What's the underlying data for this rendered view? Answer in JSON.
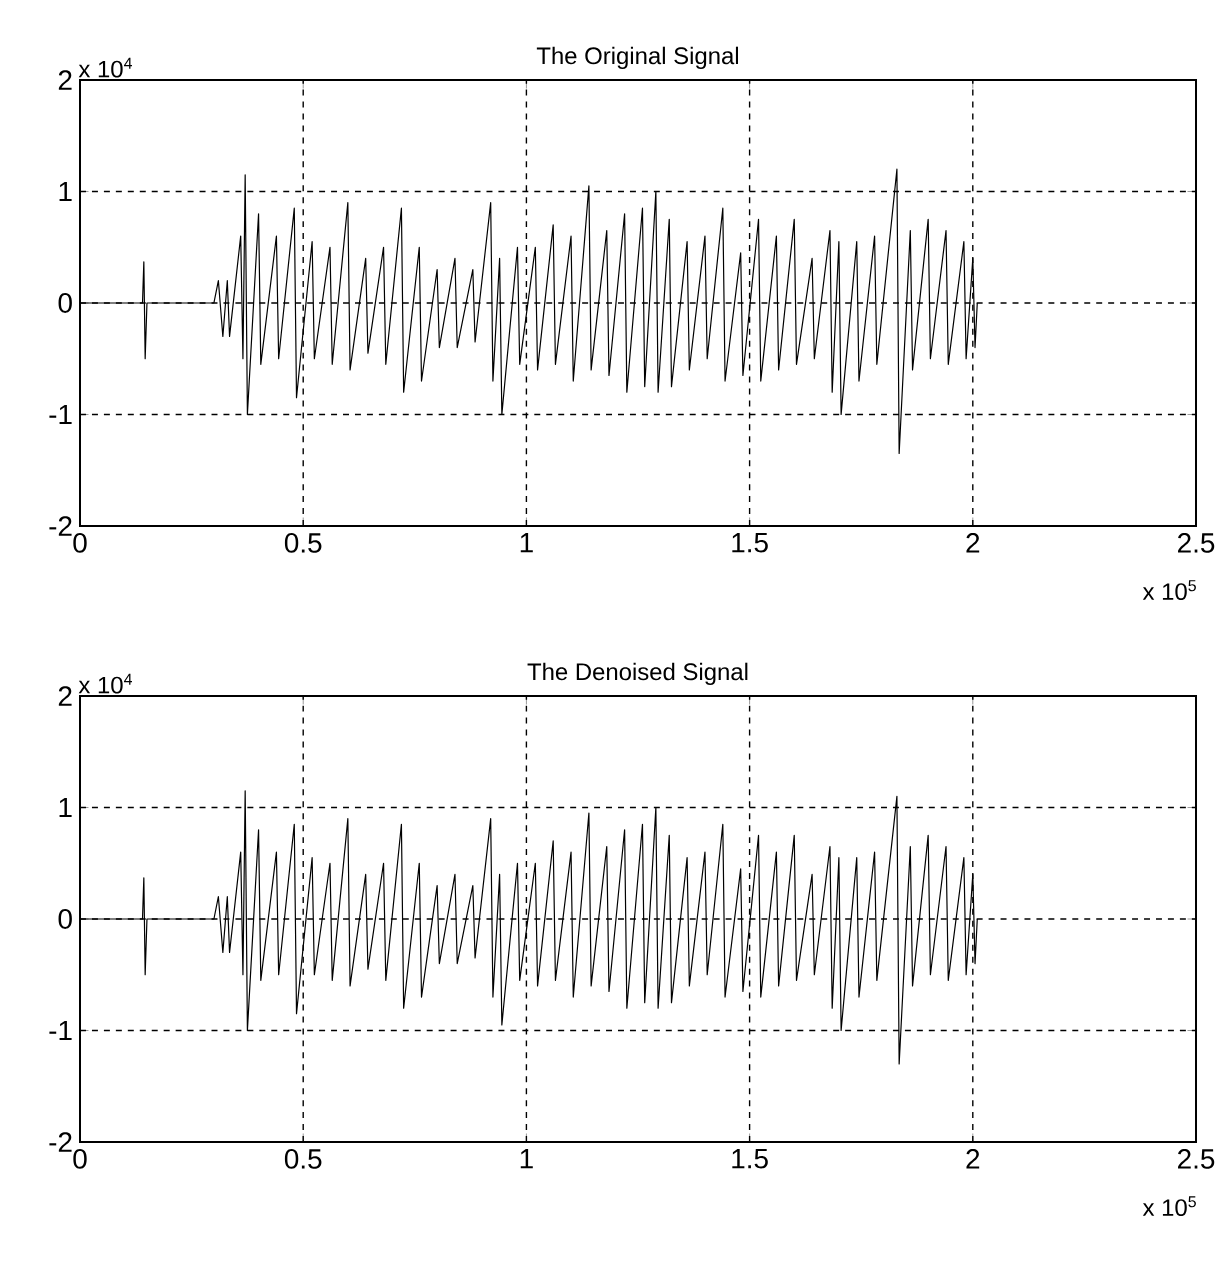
{
  "chart_data": [
    {
      "type": "line",
      "title": "The Original Signal",
      "color": "#000000",
      "grid": true,
      "line_style": "solid",
      "xlim": [
        0,
        2.5
      ],
      "ylim": [
        -2,
        2
      ],
      "xticks": [
        0,
        0.5,
        1,
        1.5,
        2,
        2.5
      ],
      "yticks": [
        -2,
        -1,
        0,
        1,
        2
      ],
      "annotations": [
        "x 10$^{4}$",
        "x 10$^{5}$"
      ],
      "x": [
        0,
        0.14,
        0.143,
        0.146,
        0.15,
        0.3,
        0.31,
        0.32,
        0.33,
        0.335,
        0.36,
        0.365,
        0.37,
        0.375,
        0.4,
        0.405,
        0.44,
        0.445,
        0.48,
        0.485,
        0.52,
        0.525,
        0.56,
        0.565,
        0.6,
        0.605,
        0.64,
        0.645,
        0.68,
        0.685,
        0.72,
        0.725,
        0.76,
        0.765,
        0.8,
        0.805,
        0.84,
        0.845,
        0.88,
        0.885,
        0.92,
        0.925,
        0.94,
        0.945,
        0.98,
        0.985,
        1.02,
        1.025,
        1.06,
        1.065,
        1.1,
        1.105,
        1.14,
        1.145,
        1.18,
        1.185,
        1.22,
        1.225,
        1.26,
        1.265,
        1.29,
        1.295,
        1.32,
        1.325,
        1.36,
        1.365,
        1.4,
        1.405,
        1.44,
        1.445,
        1.48,
        1.485,
        1.52,
        1.525,
        1.56,
        1.565,
        1.6,
        1.605,
        1.64,
        1.645,
        1.68,
        1.685,
        1.7,
        1.705,
        1.74,
        1.745,
        1.78,
        1.785,
        1.83,
        1.835,
        1.86,
        1.865,
        1.9,
        1.905,
        1.94,
        1.945,
        1.98,
        1.985,
        2.0,
        2.005,
        2.01
      ],
      "values": [
        0,
        0,
        0.37,
        -0.5,
        0,
        0,
        0.2,
        -0.3,
        0.2,
        -0.3,
        0.6,
        -0.5,
        1.15,
        -1.0,
        0.8,
        -0.55,
        0.6,
        -0.5,
        0.85,
        -0.85,
        0.55,
        -0.5,
        0.5,
        -0.55,
        0.9,
        -0.6,
        0.4,
        -0.45,
        0.5,
        -0.55,
        0.85,
        -0.8,
        0.5,
        -0.7,
        0.3,
        -0.4,
        0.4,
        -0.4,
        0.3,
        -0.35,
        0.9,
        -0.7,
        0.4,
        -1.0,
        0.5,
        -0.55,
        0.5,
        -0.6,
        0.7,
        -0.55,
        0.6,
        -0.7,
        1.05,
        -0.6,
        0.65,
        -0.65,
        0.8,
        -0.8,
        0.85,
        -0.75,
        1.0,
        -0.8,
        0.75,
        -0.75,
        0.55,
        -0.6,
        0.6,
        -0.5,
        0.85,
        -0.7,
        0.45,
        -0.65,
        0.75,
        -0.7,
        0.6,
        -0.6,
        0.75,
        -0.55,
        0.4,
        -0.5,
        0.65,
        -0.8,
        0.55,
        -1.0,
        0.55,
        -0.7,
        0.6,
        -0.55,
        1.2,
        -1.35,
        0.65,
        -0.6,
        0.75,
        -0.5,
        0.65,
        -0.55,
        0.55,
        -0.5,
        0.4,
        -0.4,
        0
      ]
    },
    {
      "type": "line",
      "title": "The Denoised Signal",
      "color": "#000000",
      "grid": true,
      "line_style": "solid",
      "xlim": [
        0,
        2.5
      ],
      "ylim": [
        -2,
        2
      ],
      "xticks": [
        0,
        0.5,
        1,
        1.5,
        2,
        2.5
      ],
      "yticks": [
        -2,
        -1,
        0,
        1,
        2
      ],
      "annotations": [
        "x 10$^{4}$",
        "x 10$^{5}$"
      ],
      "x": [
        0,
        0.14,
        0.143,
        0.146,
        0.15,
        0.3,
        0.31,
        0.32,
        0.33,
        0.335,
        0.36,
        0.365,
        0.37,
        0.375,
        0.4,
        0.405,
        0.44,
        0.445,
        0.48,
        0.485,
        0.52,
        0.525,
        0.56,
        0.565,
        0.6,
        0.605,
        0.64,
        0.645,
        0.68,
        0.685,
        0.72,
        0.725,
        0.76,
        0.765,
        0.8,
        0.805,
        0.84,
        0.845,
        0.88,
        0.885,
        0.92,
        0.925,
        0.94,
        0.945,
        0.98,
        0.985,
        1.02,
        1.025,
        1.06,
        1.065,
        1.1,
        1.105,
        1.14,
        1.145,
        1.18,
        1.185,
        1.22,
        1.225,
        1.26,
        1.265,
        1.29,
        1.295,
        1.32,
        1.325,
        1.36,
        1.365,
        1.4,
        1.405,
        1.44,
        1.445,
        1.48,
        1.485,
        1.52,
        1.525,
        1.56,
        1.565,
        1.6,
        1.605,
        1.64,
        1.645,
        1.68,
        1.685,
        1.7,
        1.705,
        1.74,
        1.745,
        1.78,
        1.785,
        1.83,
        1.835,
        1.86,
        1.865,
        1.9,
        1.905,
        1.94,
        1.945,
        1.98,
        1.985,
        2.0,
        2.005,
        2.01
      ],
      "values": [
        0,
        0,
        0.37,
        -0.5,
        0,
        0,
        0.2,
        -0.3,
        0.2,
        -0.3,
        0.6,
        -0.5,
        1.15,
        -1.0,
        0.8,
        -0.55,
        0.6,
        -0.5,
        0.85,
        -0.85,
        0.55,
        -0.5,
        0.5,
        -0.55,
        0.9,
        -0.6,
        0.4,
        -0.45,
        0.5,
        -0.55,
        0.85,
        -0.8,
        0.5,
        -0.7,
        0.3,
        -0.4,
        0.4,
        -0.4,
        0.3,
        -0.35,
        0.9,
        -0.7,
        0.4,
        -0.95,
        0.5,
        -0.55,
        0.5,
        -0.6,
        0.7,
        -0.55,
        0.6,
        -0.7,
        0.95,
        -0.6,
        0.65,
        -0.65,
        0.8,
        -0.8,
        0.85,
        -0.75,
        1.0,
        -0.8,
        0.75,
        -0.75,
        0.55,
        -0.6,
        0.6,
        -0.5,
        0.85,
        -0.7,
        0.45,
        -0.65,
        0.75,
        -0.7,
        0.6,
        -0.6,
        0.75,
        -0.55,
        0.4,
        -0.5,
        0.65,
        -0.8,
        0.55,
        -1.0,
        0.55,
        -0.7,
        0.6,
        -0.55,
        1.1,
        -1.3,
        0.65,
        -0.6,
        0.75,
        -0.5,
        0.65,
        -0.55,
        0.55,
        -0.5,
        0.4,
        -0.4,
        0
      ]
    }
  ]
}
